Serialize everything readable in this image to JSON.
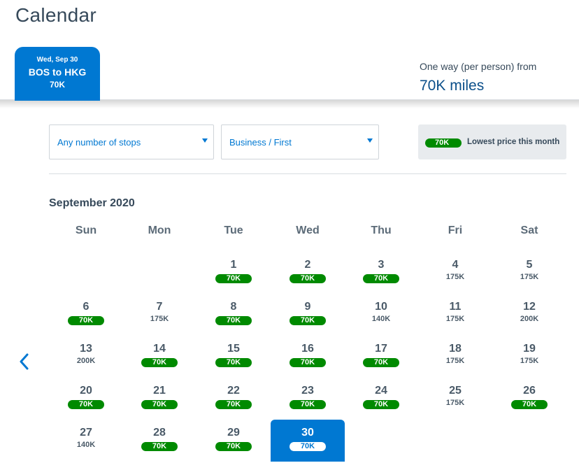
{
  "page": {
    "title": "Calendar"
  },
  "flight_tab": {
    "date": "Wed, Sep 30",
    "route": "BOS to HKG",
    "price": "70K"
  },
  "fare_summary": {
    "label": "One way (per person) from",
    "value": "70K miles"
  },
  "filters": {
    "stops": {
      "value": "Any number of stops"
    },
    "cabin": {
      "value": "Business / First"
    }
  },
  "legend": {
    "pill": "70K",
    "text": "Lowest price this month"
  },
  "calendar": {
    "month": "September 2020",
    "weekdays": [
      "Sun",
      "Mon",
      "Tue",
      "Wed",
      "Thu",
      "Fri",
      "Sat"
    ],
    "selected_day": "30",
    "lowest_price": "70K",
    "days": [
      {
        "day": "1",
        "price": "70K"
      },
      {
        "day": "2",
        "price": "70K"
      },
      {
        "day": "3",
        "price": "70K"
      },
      {
        "day": "4",
        "price": "175K"
      },
      {
        "day": "5",
        "price": "175K"
      },
      {
        "day": "6",
        "price": "70K"
      },
      {
        "day": "7",
        "price": "175K"
      },
      {
        "day": "8",
        "price": "70K"
      },
      {
        "day": "9",
        "price": "70K"
      },
      {
        "day": "10",
        "price": "140K"
      },
      {
        "day": "11",
        "price": "175K"
      },
      {
        "day": "12",
        "price": "200K"
      },
      {
        "day": "13",
        "price": "200K"
      },
      {
        "day": "14",
        "price": "70K"
      },
      {
        "day": "15",
        "price": "70K"
      },
      {
        "day": "16",
        "price": "70K"
      },
      {
        "day": "17",
        "price": "70K"
      },
      {
        "day": "18",
        "price": "175K"
      },
      {
        "day": "19",
        "price": "175K"
      },
      {
        "day": "20",
        "price": "70K"
      },
      {
        "day": "21",
        "price": "70K"
      },
      {
        "day": "22",
        "price": "70K"
      },
      {
        "day": "23",
        "price": "70K"
      },
      {
        "day": "24",
        "price": "70K"
      },
      {
        "day": "25",
        "price": "175K"
      },
      {
        "day": "26",
        "price": "70K"
      },
      {
        "day": "27",
        "price": "140K"
      },
      {
        "day": "28",
        "price": "70K"
      },
      {
        "day": "29",
        "price": "70K"
      },
      {
        "day": "30",
        "price": "70K"
      }
    ]
  },
  "icons": {
    "prev_month": "chevron-left-icon",
    "dropdown": "caret-down-icon"
  },
  "colors": {
    "accent": "#0078d2",
    "lowest_price": "#008a00",
    "text": "#36495a"
  }
}
